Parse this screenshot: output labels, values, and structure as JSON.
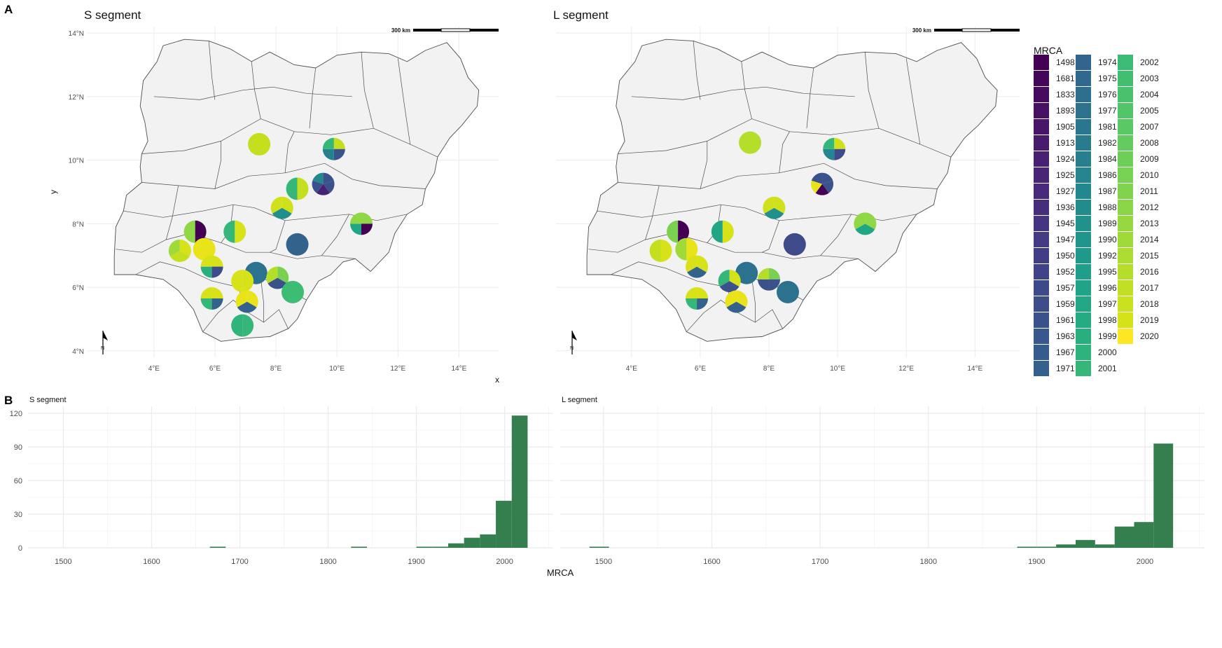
{
  "panel_labels": {
    "a": "A",
    "b": "B"
  },
  "maps": [
    {
      "title": "S segment",
      "scale_bar_label": "300 km",
      "north_label": "N",
      "pies": [
        {
          "lon": 7.45,
          "lat": 10.5,
          "colors": [
            "#c5df1f"
          ]
        },
        {
          "lon": 9.9,
          "lat": 10.35,
          "colors": [
            "#c5df1f",
            "#3a538b",
            "#26818e",
            "#35b779"
          ]
        },
        {
          "lon": 9.55,
          "lat": 9.25,
          "colors": [
            "#3b518b",
            "#3b518b",
            "#482173",
            "#3b518b",
            "#24868e"
          ]
        },
        {
          "lon": 8.7,
          "lat": 9.1,
          "colors": [
            "#c5df1f",
            "#35b779"
          ]
        },
        {
          "lon": 8.2,
          "lat": 8.5,
          "colors": [
            "#d0e11c",
            "#21908c",
            "#d0e11c"
          ]
        },
        {
          "lon": 10.8,
          "lat": 8.0,
          "colors": [
            "#8fd744",
            "#440154",
            "#21a685",
            "#8fd744"
          ]
        },
        {
          "lon": 6.65,
          "lat": 7.75,
          "colors": [
            "#d8e219",
            "#35b779"
          ]
        },
        {
          "lon": 5.35,
          "lat": 7.75,
          "colors": [
            "#440154",
            "#8fd744"
          ]
        },
        {
          "lon": 8.7,
          "lat": 7.35,
          "colors": [
            "#33638d"
          ]
        },
        {
          "lon": 4.85,
          "lat": 7.15,
          "colors": [
            "#d8e219",
            "#c5df1f",
            "#a0da39"
          ]
        },
        {
          "lon": 5.65,
          "lat": 7.2,
          "colors": [
            "#e8e419"
          ]
        },
        {
          "lon": 5.9,
          "lat": 6.65,
          "colors": [
            "#d8e219",
            "#3e4a89",
            "#29af7f",
            "#d8e219"
          ]
        },
        {
          "lon": 7.35,
          "lat": 6.45,
          "colors": [
            "#2c728e"
          ]
        },
        {
          "lon": 6.9,
          "lat": 6.2,
          "colors": [
            "#d8e219",
            "#d8e219"
          ]
        },
        {
          "lon": 8.05,
          "lat": 6.3,
          "colors": [
            "#7ad151",
            "#3b518b",
            "#b5de2b"
          ]
        },
        {
          "lon": 8.55,
          "lat": 5.85,
          "colors": [
            "#3dbc74"
          ]
        },
        {
          "lon": 5.9,
          "lat": 5.65,
          "colors": [
            "#d8e219",
            "#33638d",
            "#35b779",
            "#d8e219"
          ]
        },
        {
          "lon": 7.05,
          "lat": 5.55,
          "colors": [
            "#e8e419",
            "#33638d",
            "#e8e419"
          ]
        },
        {
          "lon": 6.9,
          "lat": 4.8,
          "colors": [
            "#35b779",
            "#2fb47c"
          ]
        }
      ]
    },
    {
      "title": "L segment",
      "scale_bar_label": "300 km",
      "north_label": "N",
      "pies": [
        {
          "lon": 7.45,
          "lat": 10.55,
          "colors": [
            "#b5de2b"
          ]
        },
        {
          "lon": 9.9,
          "lat": 10.35,
          "colors": [
            "#d0e11c",
            "#3e4a89",
            "#24868e",
            "#35b779"
          ]
        },
        {
          "lon": 9.55,
          "lat": 9.25,
          "colors": [
            "#3b518b",
            "#3b518b",
            "#440154",
            "#e8e419",
            "#3b518b"
          ]
        },
        {
          "lon": 8.15,
          "lat": 8.5,
          "colors": [
            "#d0e11c",
            "#21908c",
            "#d0e11c"
          ]
        },
        {
          "lon": 10.8,
          "lat": 8.0,
          "colors": [
            "#8fd744",
            "#21a685",
            "#8fd744"
          ]
        },
        {
          "lon": 6.65,
          "lat": 7.75,
          "colors": [
            "#d8e219",
            "#21a685"
          ]
        },
        {
          "lon": 5.35,
          "lat": 7.75,
          "colors": [
            "#440154",
            "#7ad151"
          ]
        },
        {
          "lon": 8.75,
          "lat": 7.35,
          "colors": [
            "#3e4a89"
          ]
        },
        {
          "lon": 4.85,
          "lat": 7.15,
          "colors": [
            "#d8e219",
            "#c5df1f"
          ]
        },
        {
          "lon": 5.6,
          "lat": 7.2,
          "colors": [
            "#e8e419",
            "#a0da39"
          ]
        },
        {
          "lon": 5.9,
          "lat": 6.65,
          "colors": [
            "#d8e219",
            "#33638d",
            "#d8e219"
          ]
        },
        {
          "lon": 7.35,
          "lat": 6.45,
          "colors": [
            "#2c728e"
          ]
        },
        {
          "lon": 6.85,
          "lat": 6.2,
          "colors": [
            "#d8e219",
            "#3b518b",
            "#35b779"
          ]
        },
        {
          "lon": 8.0,
          "lat": 6.25,
          "colors": [
            "#7ad151",
            "#3b518b",
            "#3b518b",
            "#b5de2b"
          ]
        },
        {
          "lon": 8.55,
          "lat": 5.85,
          "colors": [
            "#2c728e"
          ]
        },
        {
          "lon": 5.9,
          "lat": 5.65,
          "colors": [
            "#d8e219",
            "#33638d",
            "#35b779",
            "#d8e219"
          ]
        },
        {
          "lon": 7.05,
          "lat": 5.55,
          "colors": [
            "#e8e419",
            "#33638d",
            "#e8e419"
          ]
        }
      ]
    }
  ],
  "map_axes": {
    "xlabel": "x",
    "ylabel": "y",
    "x_ticks": [
      4,
      6,
      8,
      10,
      12,
      14
    ],
    "x_tick_labels": [
      "4°E",
      "6°E",
      "8°E",
      "10°E",
      "12°E",
      "14°E"
    ],
    "y_ticks": [
      4,
      6,
      8,
      10,
      12,
      14
    ],
    "y_tick_labels": [
      "4°N",
      "6°N",
      "8°N",
      "10°N",
      "12°N",
      "14°N"
    ],
    "xlim": [
      1.8,
      15.3
    ],
    "ylim": [
      3.8,
      14.2
    ]
  },
  "legend": {
    "title": "MRCA",
    "items": [
      {
        "label": "1498",
        "color": "#440154"
      },
      {
        "label": "1681",
        "color": "#450559"
      },
      {
        "label": "1833",
        "color": "#460b5e"
      },
      {
        "label": "1893",
        "color": "#471063"
      },
      {
        "label": "1905",
        "color": "#481668"
      },
      {
        "label": "1913",
        "color": "#481b6d"
      },
      {
        "label": "1924",
        "color": "#482071"
      },
      {
        "label": "1925",
        "color": "#482575"
      },
      {
        "label": "1927",
        "color": "#472a7a"
      },
      {
        "label": "1936",
        "color": "#472e7c"
      },
      {
        "label": "1945",
        "color": "#453480"
      },
      {
        "label": "1947",
        "color": "#443983"
      },
      {
        "label": "1950",
        "color": "#423e85"
      },
      {
        "label": "1952",
        "color": "#404387"
      },
      {
        "label": "1957",
        "color": "#3e4989"
      },
      {
        "label": "1959",
        "color": "#3c4d8a"
      },
      {
        "label": "1961",
        "color": "#3a528b"
      },
      {
        "label": "1963",
        "color": "#38578c"
      },
      {
        "label": "1967",
        "color": "#365c8d"
      },
      {
        "label": "1971",
        "color": "#34608d"
      },
      {
        "label": "1974",
        "color": "#32658e"
      },
      {
        "label": "1975",
        "color": "#30698e"
      },
      {
        "label": "1976",
        "color": "#2e6e8e"
      },
      {
        "label": "1977",
        "color": "#2c728e"
      },
      {
        "label": "1981",
        "color": "#2a768e"
      },
      {
        "label": "1982",
        "color": "#297b8e"
      },
      {
        "label": "1984",
        "color": "#277f8e"
      },
      {
        "label": "1986",
        "color": "#25848e"
      },
      {
        "label": "1987",
        "color": "#23888e"
      },
      {
        "label": "1988",
        "color": "#228c8d"
      },
      {
        "label": "1989",
        "color": "#21918c"
      },
      {
        "label": "1990",
        "color": "#1f958b"
      },
      {
        "label": "1992",
        "color": "#1f9a8a"
      },
      {
        "label": "1995",
        "color": "#1f9e89"
      },
      {
        "label": "1996",
        "color": "#20a386"
      },
      {
        "label": "1997",
        "color": "#22a785"
      },
      {
        "label": "1998",
        "color": "#25ab82"
      },
      {
        "label": "1999",
        "color": "#29af7f"
      },
      {
        "label": "2000",
        "color": "#2eb37c"
      },
      {
        "label": "2001",
        "color": "#35b779"
      },
      {
        "label": "2002",
        "color": "#3bbb75"
      },
      {
        "label": "2003",
        "color": "#42be71"
      },
      {
        "label": "2004",
        "color": "#4ac16d"
      },
      {
        "label": "2005",
        "color": "#52c569"
      },
      {
        "label": "2007",
        "color": "#5ac864"
      },
      {
        "label": "2008",
        "color": "#63cb5f"
      },
      {
        "label": "2009",
        "color": "#6ece58"
      },
      {
        "label": "2010",
        "color": "#77d153"
      },
      {
        "label": "2011",
        "color": "#81d34d"
      },
      {
        "label": "2012",
        "color": "#8bd646"
      },
      {
        "label": "2013",
        "color": "#95d840"
      },
      {
        "label": "2014",
        "color": "#a0da39"
      },
      {
        "label": "2015",
        "color": "#abdc32"
      },
      {
        "label": "2016",
        "color": "#b5de2b"
      },
      {
        "label": "2017",
        "color": "#c0df25"
      },
      {
        "label": "2018",
        "color": "#cae11f"
      },
      {
        "label": "2019",
        "color": "#d5e21a"
      },
      {
        "label": "2020",
        "color": "#fde725"
      }
    ]
  },
  "chart_data": [
    {
      "type": "bar",
      "title": "S segment",
      "xlabel": "MRCA",
      "ylabel": "",
      "bar_color": "#357f4e",
      "bin_width": 18,
      "xlim": [
        1460,
        2055
      ],
      "ylim": [
        0,
        120
      ],
      "x_ticks": [
        1500,
        1600,
        1700,
        1800,
        1900,
        2000
      ],
      "y_ticks": [
        0,
        30,
        60,
        90,
        120
      ],
      "bins": [
        {
          "x": 1675,
          "count": 1
        },
        {
          "x": 1835,
          "count": 1
        },
        {
          "x": 1909,
          "count": 1
        },
        {
          "x": 1927,
          "count": 1
        },
        {
          "x": 1945,
          "count": 4
        },
        {
          "x": 1963,
          "count": 9
        },
        {
          "x": 1981,
          "count": 12
        },
        {
          "x": 1999,
          "count": 42
        },
        {
          "x": 2017,
          "count": 118
        }
      ]
    },
    {
      "type": "bar",
      "title": "L segment",
      "xlabel": "MRCA",
      "ylabel": "",
      "bar_color": "#357f4e",
      "bin_width": 18,
      "xlim": [
        1460,
        2055
      ],
      "ylim": [
        0,
        100
      ],
      "x_ticks": [
        1500,
        1600,
        1700,
        1800,
        1900,
        2000
      ],
      "y_ticks": [
        0,
        30,
        60,
        90
      ],
      "bins": [
        {
          "x": 1496,
          "count": 1
        },
        {
          "x": 1891,
          "count": 1
        },
        {
          "x": 1909,
          "count": 1
        },
        {
          "x": 1927,
          "count": 3
        },
        {
          "x": 1945,
          "count": 7
        },
        {
          "x": 1963,
          "count": 3
        },
        {
          "x": 1981,
          "count": 19
        },
        {
          "x": 1999,
          "count": 23
        },
        {
          "x": 2017,
          "count": 93
        }
      ]
    }
  ]
}
